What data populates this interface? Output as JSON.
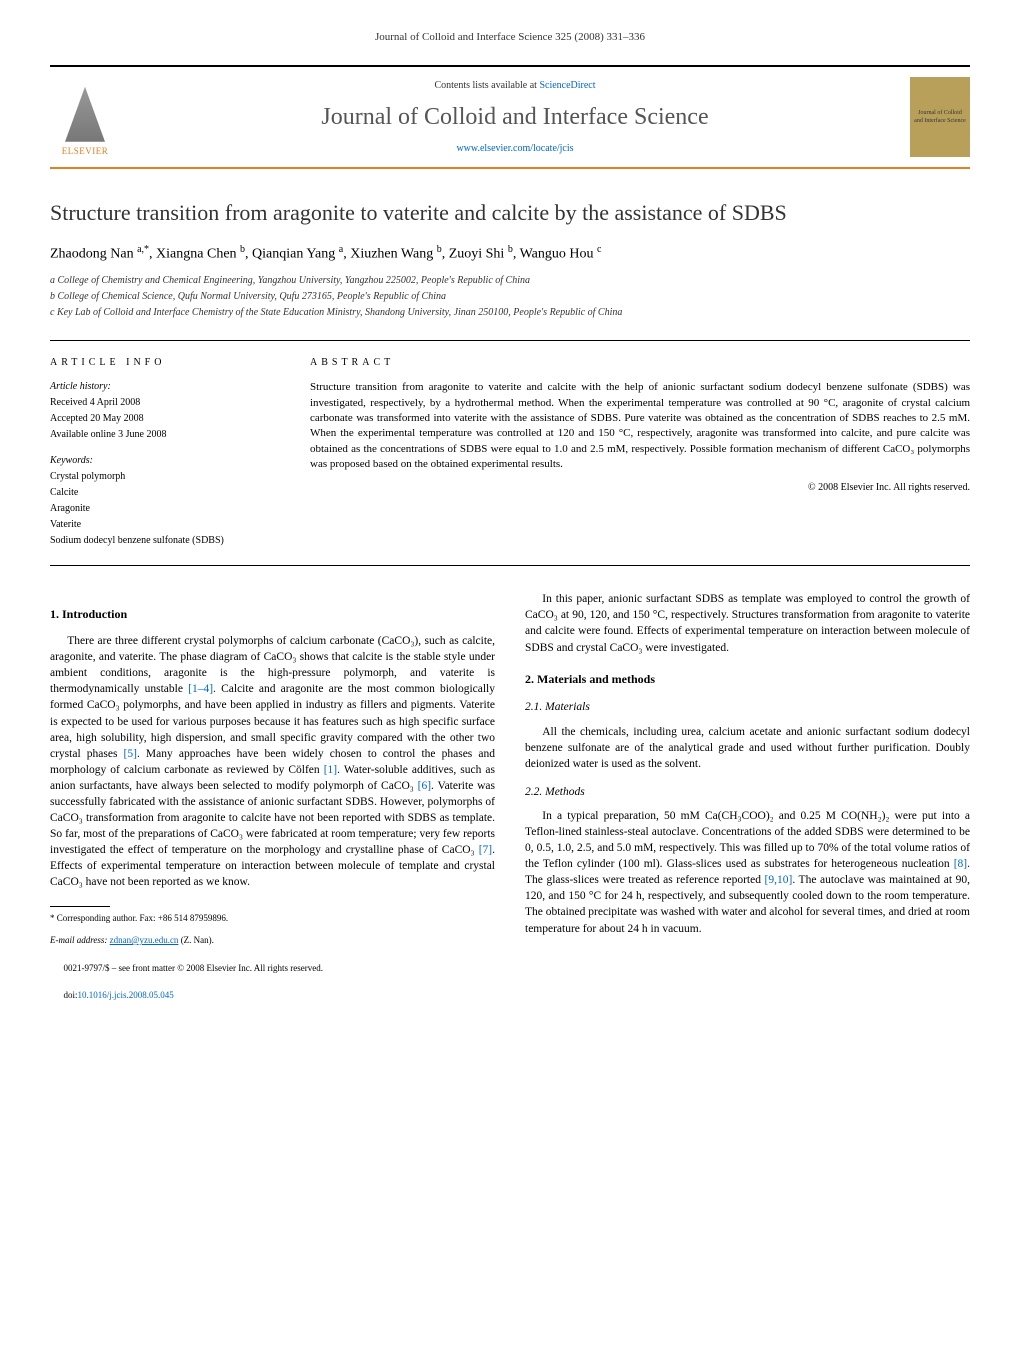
{
  "running_header": "Journal of Colloid and Interface Science 325 (2008) 331–336",
  "banner": {
    "publisher": "ELSEVIER",
    "contents_prefix": "Contents lists available at ",
    "contents_link": "ScienceDirect",
    "journal_name": "Journal of Colloid and Interface Science",
    "journal_url": "www.elsevier.com/locate/jcis",
    "cover_text": "Journal of Colloid and Interface Science"
  },
  "title": "Structure transition from aragonite to vaterite and calcite by the assistance of SDBS",
  "authors_html": "Zhaodong Nan <sup>a,*</sup>, Xiangna Chen <sup>b</sup>, Qianqian Yang <sup>a</sup>, Xiuzhen Wang <sup>b</sup>, Zuoyi Shi <sup>b</sup>, Wanguo Hou <sup>c</sup>",
  "affiliations": [
    "a College of Chemistry and Chemical Engineering, Yangzhou University, Yangzhou 225002, People's Republic of China",
    "b College of Chemical Science, Qufu Normal University, Qufu 273165, People's Republic of China",
    "c Key Lab of Colloid and Interface Chemistry of the State Education Ministry, Shandong University, Jinan 250100, People's Republic of China"
  ],
  "info": {
    "heading": "ARTICLE INFO",
    "history_head": "Article history:",
    "received": "Received 4 April 2008",
    "accepted": "Accepted 20 May 2008",
    "online": "Available online 3 June 2008",
    "keywords_head": "Keywords:",
    "keywords": [
      "Crystal polymorph",
      "Calcite",
      "Aragonite",
      "Vaterite",
      "Sodium dodecyl benzene sulfonate (SDBS)"
    ]
  },
  "abstract": {
    "heading": "ABSTRACT",
    "text": "Structure transition from aragonite to vaterite and calcite with the help of anionic surfactant sodium dodecyl benzene sulfonate (SDBS) was investigated, respectively, by a hydrothermal method. When the experimental temperature was controlled at 90 °C, aragonite of crystal calcium carbonate was transformed into vaterite with the assistance of SDBS. Pure vaterite was obtained as the concentration of SDBS reaches to 2.5 mM. When the experimental temperature was controlled at 120 and 150 °C, respectively, aragonite was transformed into calcite, and pure calcite was obtained as the concentrations of SDBS were equal to 1.0 and 2.5 mM, respectively. Possible formation mechanism of different CaCO₃ polymorphs was proposed based on the obtained experimental results.",
    "copyright": "© 2008 Elsevier Inc. All rights reserved."
  },
  "body": {
    "left": {
      "h1": "1. Introduction",
      "p1": "There are three different crystal polymorphs of calcium carbonate (CaCO₃), such as calcite, aragonite, and vaterite. The phase diagram of CaCO₃ shows that calcite is the stable style under ambient conditions, aragonite is the high-pressure polymorph, and vaterite is thermodynamically unstable [1–4]. Calcite and aragonite are the most common biologically formed CaCO₃ polymorphs, and have been applied in industry as fillers and pigments. Vaterite is expected to be used for various purposes because it has features such as high specific surface area, high solubility, high dispersion, and small specific gravity compared with the other two crystal phases [5]. Many approaches have been widely chosen to control the phases and morphology of calcium carbonate as reviewed by Cölfen [1]. Water-soluble additives, such as anion surfactants, have always been selected to modify polymorph of CaCO₃ [6]. Vaterite was successfully fabricated with the assistance of anionic surfactant SDBS. However, polymorphs of CaCO₃ transformation from aragonite to calcite have not been reported with SDBS as template. So far, most of the preparations of CaCO₃ were fabricated at room temperature; very few reports investigated the effect of temperature on the morphology and crystalline phase of CaCO₃ [7]. Effects of experimental temperature on interaction between molecule of template and crystal CaCO₃ have not been reported as we know.",
      "footnote_corr": "* Corresponding author. Fax: +86 514 87959896.",
      "footnote_email_label": "E-mail address: ",
      "footnote_email": "zdnan@yzu.edu.cn",
      "footnote_email_tail": " (Z. Nan)."
    },
    "right": {
      "p1": "In this paper, anionic surfactant SDBS as template was employed to control the growth of CaCO₃ at 90, 120, and 150 °C, respectively. Structures transformation from aragonite to vaterite and calcite were found. Effects of experimental temperature on interaction between molecule of SDBS and crystal CaCO₃ were investigated.",
      "h2": "2. Materials and methods",
      "h2_1": "2.1. Materials",
      "p2": "All the chemicals, including urea, calcium acetate and anionic surfactant sodium dodecyl benzene sulfonate are of the analytical grade and used without further purification. Doubly deionized water is used as the solvent.",
      "h2_2": "2.2. Methods",
      "p3": "In a typical preparation, 50 mM Ca(CH₃COO)₂ and 0.25 M CO(NH₂)₂ were put into a Teflon-lined stainless-steal autoclave. Concentrations of the added SDBS were determined to be 0, 0.5, 1.0, 2.5, and 5.0 mM, respectively. This was filled up to 70% of the total volume ratios of the Teflon cylinder (100 ml). Glass-slices used as substrates for heterogeneous nucleation [8]. The glass-slices were treated as reference reported [9,10]. The autoclave was maintained at 90, 120, and 150 °C for 24 h, respectively, and subsequently cooled down to the room temperature. The obtained precipitate was washed with water and alcohol for several times, and dried at room temperature for about 24 h in vacuum."
    }
  },
  "footer": {
    "line1": "0021-9797/$ – see front matter © 2008 Elsevier Inc. All rights reserved.",
    "doi_label": "doi:",
    "doi": "10.1016/j.jcis.2008.05.045"
  },
  "colors": {
    "accent_orange": "#e67e22",
    "link_blue": "#0066cc",
    "cover_bg": "#b8a05a"
  }
}
